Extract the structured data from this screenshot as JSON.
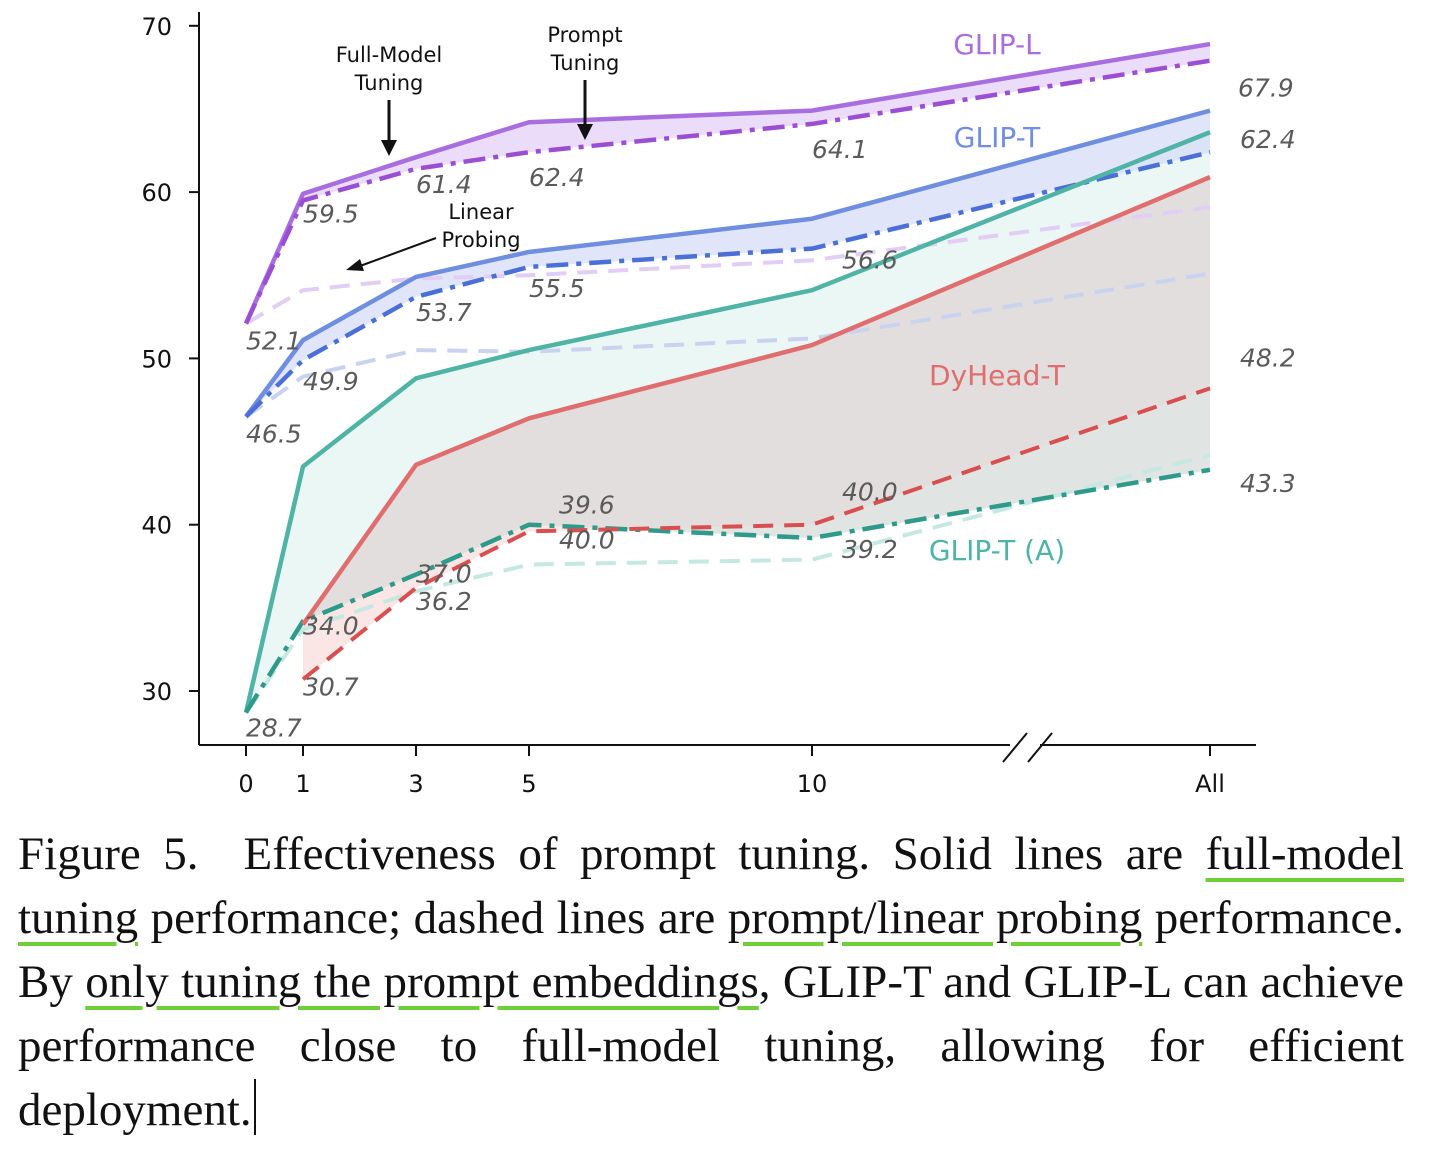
{
  "chart_data": {
    "type": "line",
    "categories": [
      "0",
      "1",
      "3",
      "5",
      "10",
      "All"
    ],
    "ylim": [
      27,
      71
    ],
    "yticks": [
      30,
      40,
      50,
      60,
      70
    ],
    "grid": false,
    "series": [
      {
        "name": "GLIP-L",
        "style": "solid",
        "color": "#a86ee0",
        "values": [
          52.1,
          59.9,
          62.1,
          64.2,
          64.9,
          68.9
        ]
      },
      {
        "name": "",
        "style": "dashdot",
        "color": "#9a4ed4",
        "values": [
          52.1,
          59.5,
          61.4,
          62.4,
          64.1,
          67.9
        ]
      },
      {
        "name": "",
        "style": "dashed",
        "color": "#e2cdf5",
        "values": [
          52.1,
          54.1,
          54.8,
          55.0,
          55.9,
          59.1
        ]
      },
      {
        "name": "GLIP-T",
        "style": "solid",
        "color": "#6f8ee0",
        "values": [
          46.5,
          51.1,
          54.9,
          56.4,
          58.4,
          64.9
        ]
      },
      {
        "name": "",
        "style": "dashdot",
        "color": "#4a6fd6",
        "values": [
          46.5,
          49.9,
          53.7,
          55.5,
          56.6,
          62.4
        ]
      },
      {
        "name": "",
        "style": "dashed",
        "color": "#c9d3ef",
        "values": [
          46.5,
          48.9,
          50.5,
          50.4,
          51.2,
          55.1
        ]
      },
      {
        "name": "GLIP-T (A)",
        "style": "solid",
        "color": "#4fb3a6",
        "values": [
          28.7,
          43.5,
          48.8,
          50.5,
          54.1,
          63.6
        ]
      },
      {
        "name": "",
        "style": "dashdot",
        "color": "#2e9a8a",
        "values": [
          28.7,
          34.2,
          37.0,
          40.0,
          39.2,
          43.3
        ]
      },
      {
        "name": "",
        "style": "dashed",
        "color": "#c5e8e2",
        "values": [
          28.7,
          33.7,
          36.0,
          37.6,
          37.9,
          44.2
        ]
      },
      {
        "name": "DyHead-T",
        "style": "solid",
        "color": "#e06e6e",
        "values": [
          null,
          34.0,
          43.6,
          46.4,
          50.8,
          60.9
        ]
      },
      {
        "name": "",
        "style": "dashed",
        "color": "#d94f4f",
        "values": [
          null,
          30.7,
          36.2,
          39.6,
          40.0,
          48.2
        ]
      }
    ],
    "value_labels": [
      {
        "x": "0",
        "y": 52.1,
        "text": "52.1"
      },
      {
        "x": "1",
        "y": 59.5,
        "text": "59.5"
      },
      {
        "x": "3",
        "y": 61.4,
        "text": "61.4"
      },
      {
        "x": "5",
        "y": 62.4,
        "text": "62.4"
      },
      {
        "x": "10",
        "y": 64.1,
        "text": "64.1"
      },
      {
        "x": "All",
        "y": 67.9,
        "text": "67.9"
      },
      {
        "x": "1",
        "y": 49.9,
        "text": "49.9"
      },
      {
        "x": "3",
        "y": 53.7,
        "text": "53.7"
      },
      {
        "x": "5",
        "y": 55.5,
        "text": "55.5"
      },
      {
        "x": "10",
        "y": 56.6,
        "text": "56.6"
      },
      {
        "x": "All",
        "y": 62.4,
        "text": "62.4"
      },
      {
        "x": "0",
        "y": 46.5,
        "text": "46.5"
      },
      {
        "x": "0",
        "y": 28.7,
        "text": "28.7"
      },
      {
        "x": "1",
        "y": 34.0,
        "text": "34.0"
      },
      {
        "x": "1",
        "y": 30.7,
        "text": "30.7"
      },
      {
        "x": "3",
        "y": 36.2,
        "text": "36.2"
      },
      {
        "x": "3",
        "y": 37.0,
        "text": "37.0"
      },
      {
        "x": "5",
        "y": 39.6,
        "text": "39.6"
      },
      {
        "x": "5",
        "y": 40.0,
        "text": "40.0"
      },
      {
        "x": "10",
        "y": 40.0,
        "text": "40.0"
      },
      {
        "x": "10",
        "y": 39.2,
        "text": "39.2"
      },
      {
        "x": "All",
        "y": 48.2,
        "text": "48.2"
      },
      {
        "x": "All",
        "y": 43.3,
        "text": "43.3"
      }
    ],
    "annotations": [
      {
        "text": [
          "Full-Model",
          "Tuning"
        ]
      },
      {
        "text": [
          "Prompt",
          "Tuning"
        ]
      },
      {
        "text": [
          "Linear",
          "Probing"
        ]
      }
    ],
    "axis_break_between": [
      "10",
      "All"
    ]
  },
  "caption": {
    "figure_label": "Figure 5.",
    "part1": "Effectiveness of prompt tuning. Solid lines are ",
    "ul1": "full-model tuning",
    "part2": " performance; dashed lines are ",
    "ul2": "prompt/linear probing",
    "part3": " performance. By ",
    "ul3": "only tuning the prompt embeddings",
    "part4": ", GLIP-T and GLIP-L can achieve performance close to full-model tuning, allowing for efficient deployment."
  }
}
